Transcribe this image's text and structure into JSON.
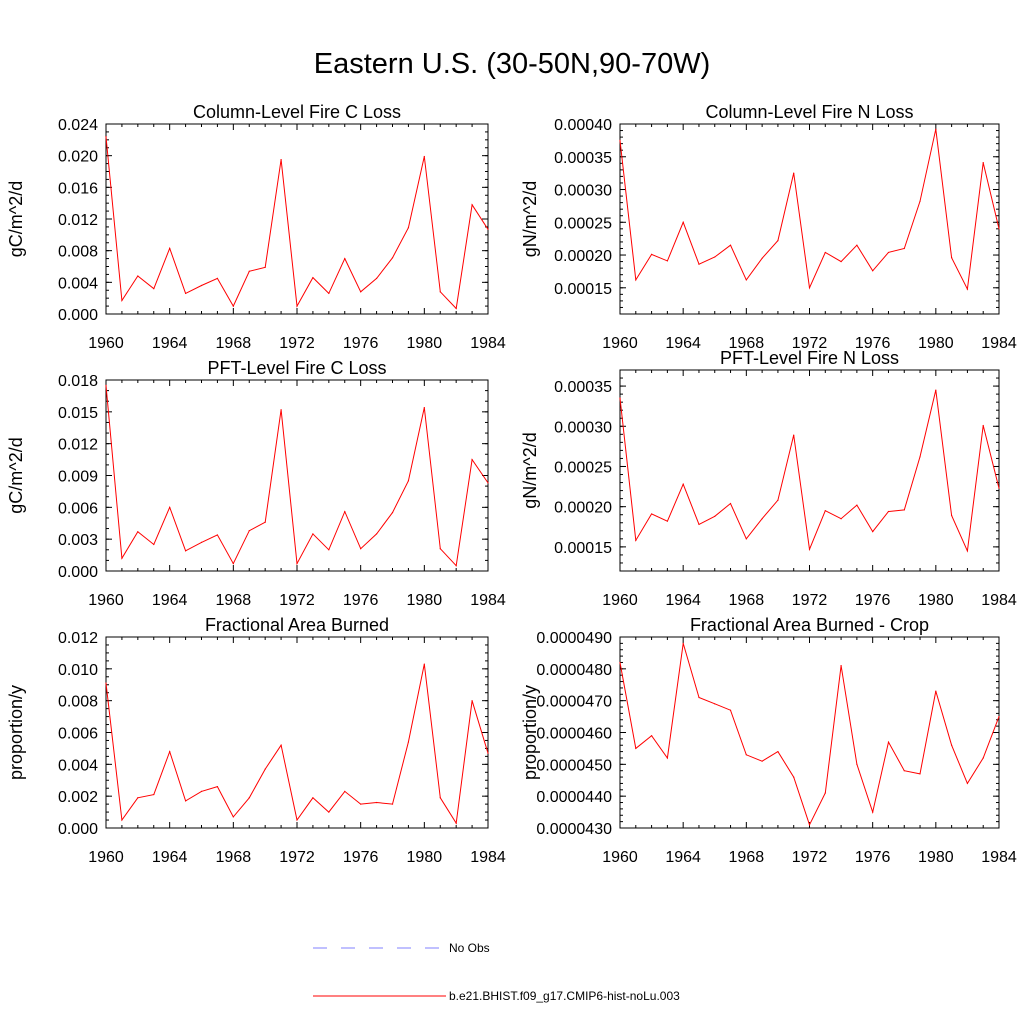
{
  "title": "Eastern U.S. (30-50N,90-70W)",
  "colors": {
    "model": "#ff0000",
    "obs": "#8080ff"
  },
  "legend": [
    {
      "label": "No Obs",
      "color": "#8080ff",
      "dashed": true
    },
    {
      "label": "b.e21.BHIST.f09_g17.CMIP6-hist-noLu.003",
      "color": "#ff0000",
      "dashed": false
    }
  ],
  "chart_data": [
    {
      "type": "line",
      "title": "Column-Level Fire C Loss",
      "ylabel": "gC/m^2/d",
      "xlim": [
        1960,
        1984
      ],
      "ylim": [
        0,
        0.024
      ],
      "xticks": [
        "1960",
        "1964",
        "1968",
        "1972",
        "1976",
        "1980",
        "1984"
      ],
      "yticks": [
        "0.000",
        "0.004",
        "0.008",
        "0.012",
        "0.016",
        "0.020",
        "0.024"
      ],
      "yticks_minor": 0.001,
      "x": [
        1960,
        1961,
        1962,
        1963,
        1964,
        1965,
        1966,
        1967,
        1968,
        1969,
        1970,
        1971,
        1972,
        1973,
        1974,
        1975,
        1976,
        1977,
        1978,
        1979,
        1980,
        1981,
        1982,
        1983,
        1984
      ],
      "series": [
        {
          "values": [
            0.0224,
            0.0017,
            0.0048,
            0.0032,
            0.0083,
            0.0026,
            0.0036,
            0.0045,
            0.001,
            0.0054,
            0.0059,
            0.0195,
            0.001,
            0.0046,
            0.0026,
            0.007,
            0.0028,
            0.0045,
            0.0071,
            0.0109,
            0.0199,
            0.0028,
            0.0007,
            0.0138,
            0.0107
          ]
        }
      ]
    },
    {
      "type": "line",
      "title": "Column-Level Fire N Loss",
      "ylabel": "gN/m^2/d",
      "xlim": [
        1960,
        1984
      ],
      "ylim": [
        0.00011,
        0.0004
      ],
      "xticks": [
        "1960",
        "1964",
        "1968",
        "1972",
        "1976",
        "1980",
        "1984"
      ],
      "yticks": [
        "0.00015",
        "0.00020",
        "0.00025",
        "0.00030",
        "0.00035",
        "0.00040"
      ],
      "yticks_minor": 1e-05,
      "x": [
        1960,
        1961,
        1962,
        1963,
        1964,
        1965,
        1966,
        1967,
        1968,
        1969,
        1970,
        1971,
        1972,
        1973,
        1974,
        1975,
        1976,
        1977,
        1978,
        1979,
        1980,
        1981,
        1982,
        1983,
        1984
      ],
      "series": [
        {
          "values": [
            0.000375,
            0.000162,
            0.000201,
            0.000191,
            0.00025,
            0.000186,
            0.000197,
            0.000215,
            0.000162,
            0.000195,
            0.000222,
            0.000325,
            0.00015,
            0.000204,
            0.00019,
            0.000215,
            0.000176,
            0.000204,
            0.00021,
            0.000282,
            0.000392,
            0.000196,
            0.000148,
            0.000341,
            0.00024
          ]
        }
      ]
    },
    {
      "type": "line",
      "title": "PFT-Level Fire C Loss",
      "ylabel": "gC/m^2/d",
      "xlim": [
        1960,
        1984
      ],
      "ylim": [
        0,
        0.018
      ],
      "xticks": [
        "1960",
        "1964",
        "1968",
        "1972",
        "1976",
        "1980",
        "1984"
      ],
      "yticks": [
        "0.000",
        "0.003",
        "0.006",
        "0.009",
        "0.012",
        "0.015",
        "0.018"
      ],
      "yticks_minor": 0.001,
      "x": [
        1960,
        1961,
        1962,
        1963,
        1964,
        1965,
        1966,
        1967,
        1968,
        1969,
        1970,
        1971,
        1972,
        1973,
        1974,
        1975,
        1976,
        1977,
        1978,
        1979,
        1980,
        1981,
        1982,
        1983,
        1984
      ],
      "series": [
        {
          "values": [
            0.0175,
            0.0012,
            0.0037,
            0.0025,
            0.006,
            0.0019,
            0.0027,
            0.0034,
            0.0007,
            0.0038,
            0.0046,
            0.0152,
            0.0007,
            0.0035,
            0.002,
            0.0056,
            0.0021,
            0.0035,
            0.0055,
            0.0085,
            0.0154,
            0.0021,
            0.0005,
            0.0105,
            0.0083
          ]
        }
      ]
    },
    {
      "type": "line",
      "title": "PFT-Level Fire N Loss",
      "ylabel": "gN/m^2/d",
      "xlim": [
        1960,
        1984
      ],
      "ylim": [
        0.00012,
        0.00037
      ],
      "xticks": [
        "1960",
        "1964",
        "1968",
        "1972",
        "1976",
        "1980",
        "1984"
      ],
      "yticks": [
        "0.00015",
        "0.00020",
        "0.00025",
        "0.00030",
        "0.00035"
      ],
      "yticks_minor": 1e-05,
      "x": [
        1960,
        1961,
        1962,
        1963,
        1964,
        1965,
        1966,
        1967,
        1968,
        1969,
        1970,
        1971,
        1972,
        1973,
        1974,
        1975,
        1976,
        1977,
        1978,
        1979,
        1980,
        1981,
        1982,
        1983,
        1984
      ],
      "series": [
        {
          "values": [
            0.000335,
            0.000158,
            0.000191,
            0.000182,
            0.000228,
            0.000178,
            0.000188,
            0.000204,
            0.00016,
            0.000185,
            0.000208,
            0.000289,
            0.000147,
            0.000195,
            0.000185,
            0.000202,
            0.000169,
            0.000194,
            0.000196,
            0.000262,
            0.000345,
            0.000189,
            0.000145,
            0.000301,
            0.000223
          ]
        }
      ]
    },
    {
      "type": "line",
      "title": "Fractional Area Burned",
      "ylabel": "proportion/y",
      "xlim": [
        1960,
        1984
      ],
      "ylim": [
        0,
        0.012
      ],
      "xticks": [
        "1960",
        "1964",
        "1968",
        "1972",
        "1976",
        "1980",
        "1984"
      ],
      "yticks": [
        "0.000",
        "0.002",
        "0.004",
        "0.006",
        "0.008",
        "0.010",
        "0.012"
      ],
      "yticks_minor": 0.0005,
      "x": [
        1960,
        1961,
        1962,
        1963,
        1964,
        1965,
        1966,
        1967,
        1968,
        1969,
        1970,
        1971,
        1972,
        1973,
        1974,
        1975,
        1976,
        1977,
        1978,
        1979,
        1980,
        1981,
        1982,
        1983,
        1984
      ],
      "series": [
        {
          "values": [
            0.0091,
            0.0005,
            0.0019,
            0.0021,
            0.0048,
            0.0017,
            0.0023,
            0.0026,
            0.0007,
            0.0019,
            0.0037,
            0.0052,
            0.0005,
            0.0019,
            0.001,
            0.0023,
            0.0015,
            0.0016,
            0.0015,
            0.0054,
            0.0103,
            0.0019,
            0.0003,
            0.008,
            0.0047
          ]
        }
      ]
    },
    {
      "type": "line",
      "title": "Fractional Area Burned - Crop",
      "ylabel": "proportion/y",
      "xlim": [
        1960,
        1984
      ],
      "ylim": [
        4.3e-05,
        4.9e-05
      ],
      "xticks": [
        "1960",
        "1964",
        "1968",
        "1972",
        "1976",
        "1980",
        "1984"
      ],
      "yticks": [
        "0.0000430",
        "0.0000440",
        "0.0000450",
        "0.0000460",
        "0.0000470",
        "0.0000480",
        "0.0000490"
      ],
      "yticks_minor": 2e-07,
      "x": [
        1960,
        1961,
        1962,
        1963,
        1964,
        1965,
        1966,
        1967,
        1968,
        1969,
        1970,
        1971,
        1972,
        1973,
        1974,
        1975,
        1976,
        1977,
        1978,
        1979,
        1980,
        1981,
        1982,
        1983,
        1984
      ],
      "series": [
        {
          "values": [
            4.82e-05,
            4.55e-05,
            4.59e-05,
            4.52e-05,
            4.88e-05,
            4.71e-05,
            4.69e-05,
            4.67e-05,
            4.53e-05,
            4.51e-05,
            4.54e-05,
            4.46e-05,
            4.31e-05,
            4.41e-05,
            4.81e-05,
            4.5e-05,
            4.35e-05,
            4.57e-05,
            4.48e-05,
            4.47e-05,
            4.73e-05,
            4.56e-05,
            4.44e-05,
            4.52e-05,
            4.65e-05
          ]
        }
      ]
    }
  ]
}
